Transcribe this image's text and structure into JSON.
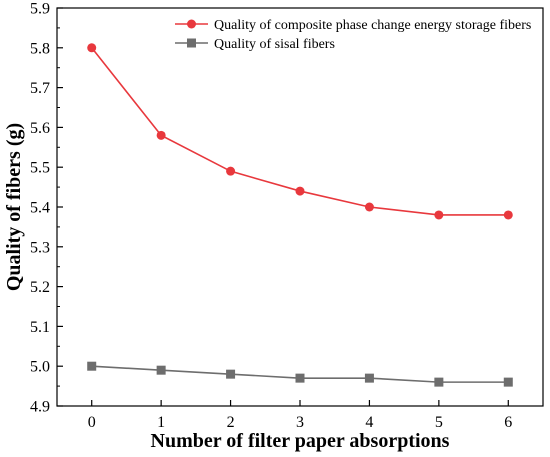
{
  "chart_data": {
    "type": "line",
    "xlabel": "Number of filter paper absorptions",
    "ylabel": "Quality of fibers (g)",
    "x": [
      0,
      1,
      2,
      3,
      4,
      5,
      6
    ],
    "xlim": [
      -0.5,
      6.5
    ],
    "ylim": [
      4.9,
      5.9
    ],
    "x_ticks": [
      "0",
      "1",
      "2",
      "3",
      "4",
      "5",
      "6"
    ],
    "y_ticks": [
      "4.9",
      "5.0",
      "5.1",
      "5.2",
      "5.3",
      "5.4",
      "5.5",
      "5.6",
      "5.7",
      "5.8",
      "5.9"
    ],
    "grid": false,
    "legend_position": "top-right",
    "series": [
      {
        "name": "Quality of composite phase change energy storage fibers",
        "values": [
          5.8,
          5.58,
          5.49,
          5.44,
          5.4,
          5.38,
          5.38
        ],
        "color": "#e8383d",
        "marker": "circle"
      },
      {
        "name": "Quality of sisal fibers",
        "values": [
          5.0,
          4.99,
          4.98,
          4.97,
          4.97,
          4.96,
          4.96
        ],
        "color": "#6d6d6d",
        "marker": "square"
      }
    ]
  }
}
